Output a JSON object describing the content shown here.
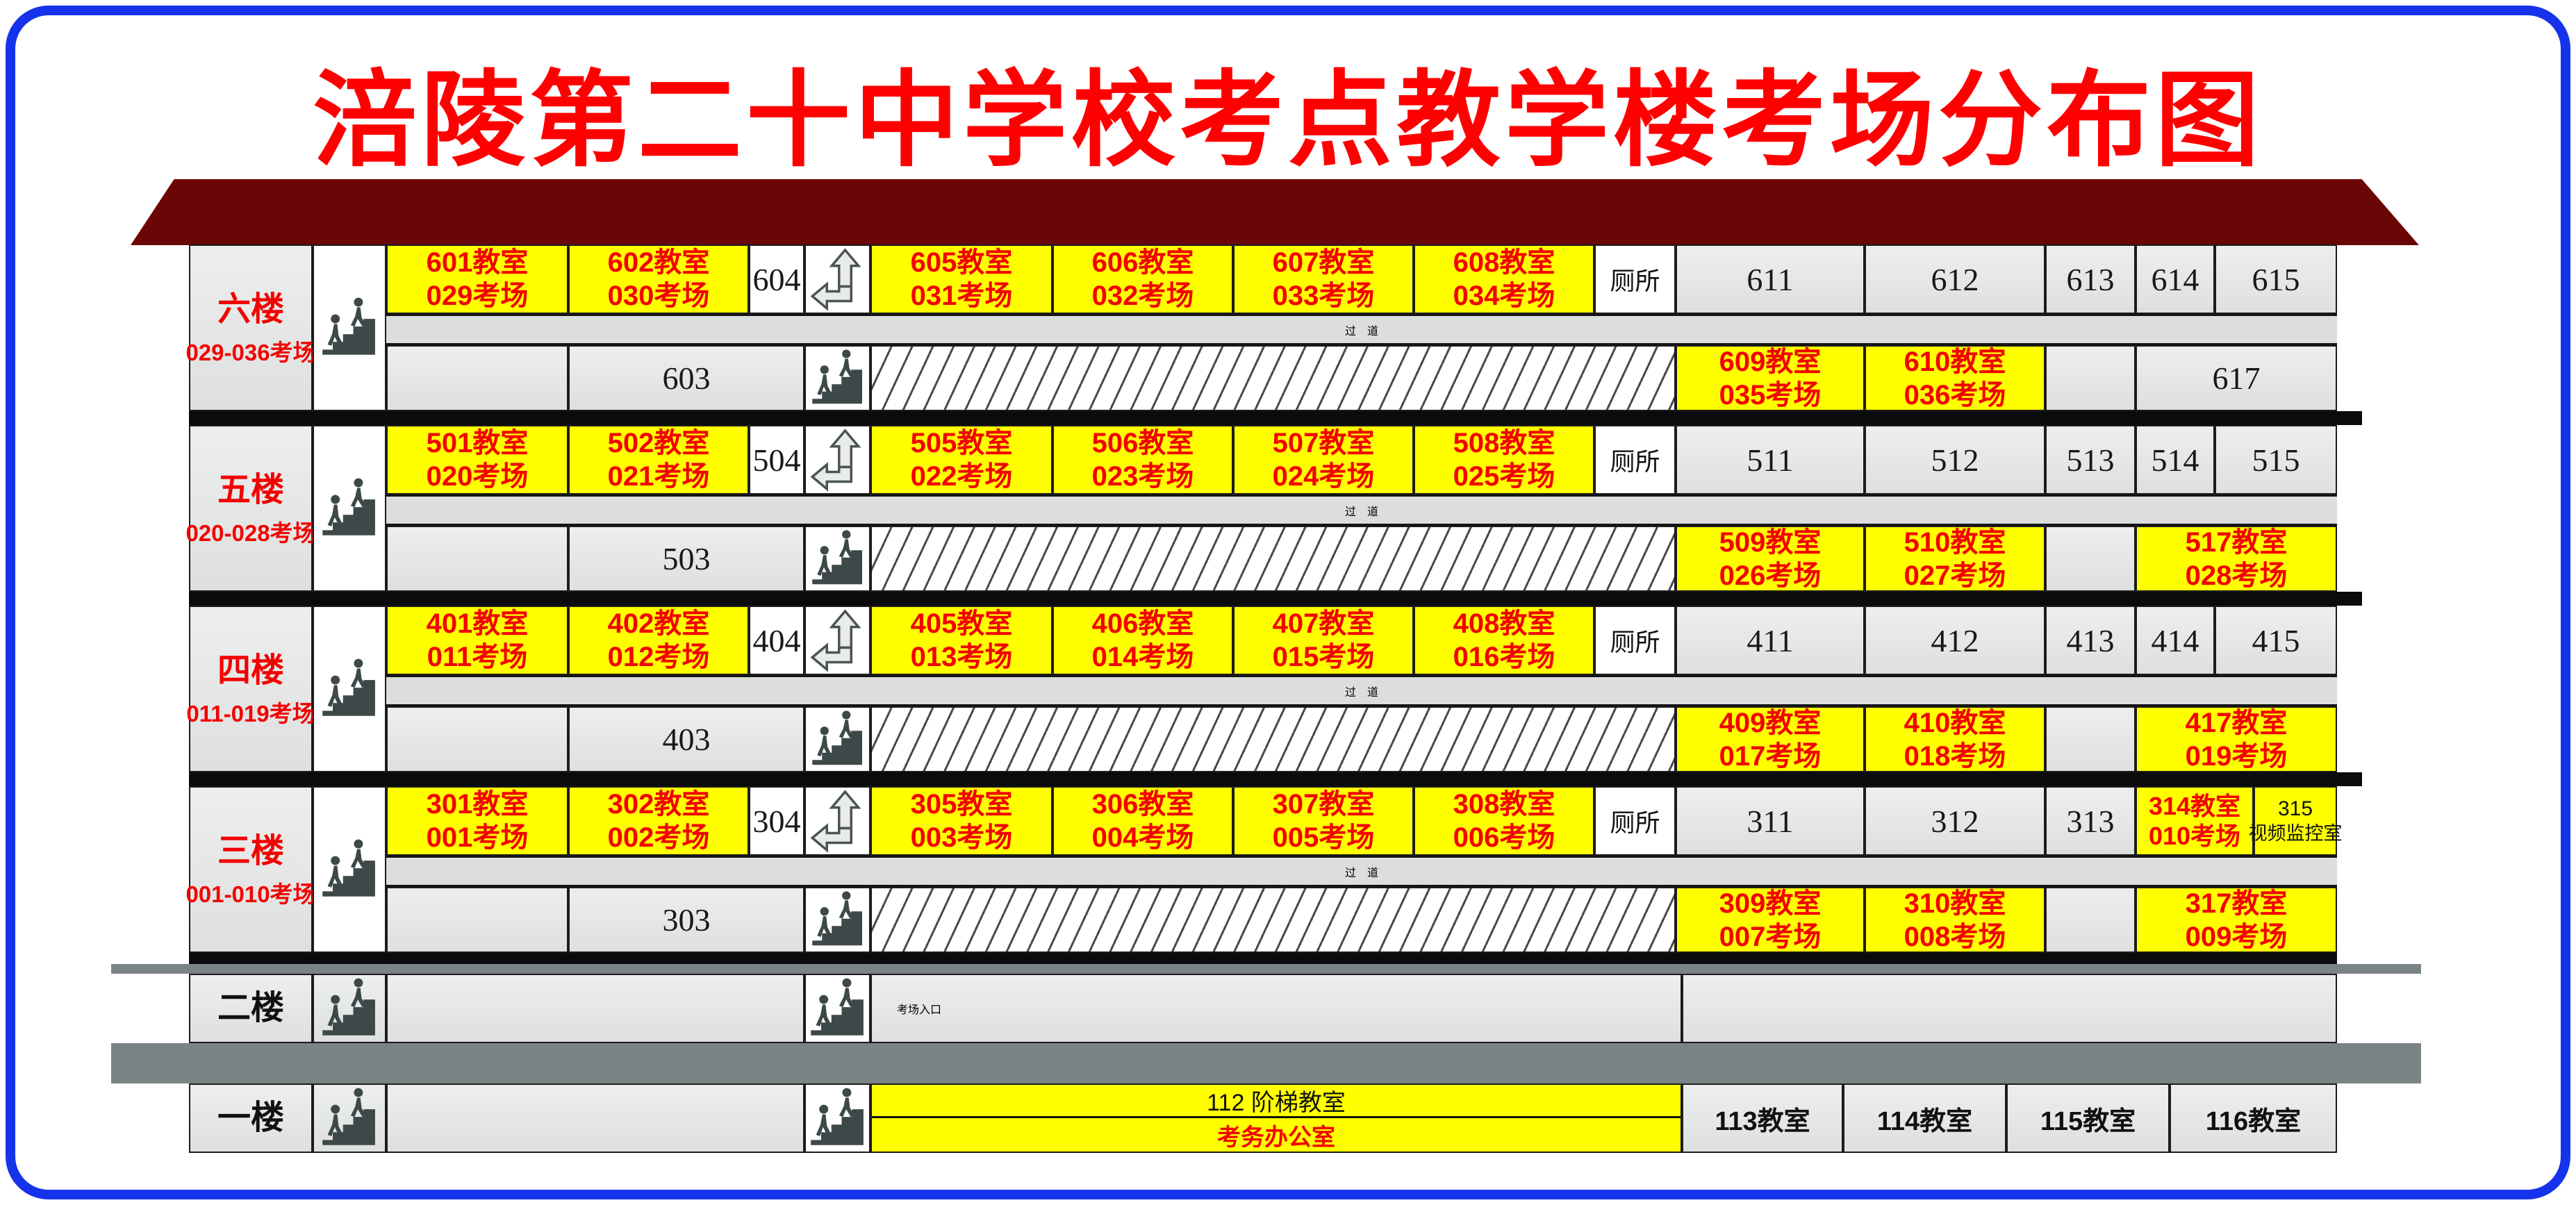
{
  "title": "涪陵第二十中学校考点教学楼考场分布图",
  "labels": {
    "corridor": "过　道",
    "toilet": "厕所",
    "entrance": "考场入口"
  },
  "colors": {
    "title_red": "#fe0000",
    "room_red": "#f30000",
    "yellow": "#ffff00",
    "roof": "#6a0706",
    "slab_gray": "#7a8486",
    "border_blue": "#1633ec"
  },
  "floors": [
    {
      "name": "六楼",
      "range": "029-036考场",
      "top": [
        {
          "k": "room",
          "t": "601教室",
          "e": "029考场"
        },
        {
          "k": "room",
          "t": "602教室",
          "e": "030考场"
        },
        {
          "k": "wnum",
          "t": "604"
        },
        {
          "k": "arrow"
        },
        {
          "k": "room",
          "t": "605教室",
          "e": "031考场"
        },
        {
          "k": "room",
          "t": "606教室",
          "e": "032考场"
        },
        {
          "k": "room",
          "t": "607教室",
          "e": "033考场"
        },
        {
          "k": "room",
          "t": "608教室",
          "e": "034考场"
        },
        {
          "k": "toilet"
        },
        {
          "k": "gnum",
          "t": "611"
        },
        {
          "k": "gnum",
          "t": "612"
        },
        {
          "k": "gnum",
          "t": "613"
        },
        {
          "k": "gnum",
          "t": "614"
        },
        {
          "k": "gnum",
          "t": "615"
        }
      ],
      "bottom": [
        {
          "k": "gempty"
        },
        {
          "k": "gnum",
          "t": "603"
        },
        {
          "k": "stairs"
        },
        {
          "k": "hatch"
        },
        {
          "k": "room",
          "t": "609教室",
          "e": "035考场"
        },
        {
          "k": "room",
          "t": "610教室",
          "e": "036考场"
        },
        {
          "k": "gempty"
        },
        {
          "k": "gnum",
          "t": "617"
        }
      ]
    },
    {
      "name": "五楼",
      "range": "020-028考场",
      "top": [
        {
          "k": "room",
          "t": "501教室",
          "e": "020考场"
        },
        {
          "k": "room",
          "t": "502教室",
          "e": "021考场"
        },
        {
          "k": "wnum",
          "t": "504"
        },
        {
          "k": "arrow"
        },
        {
          "k": "room",
          "t": "505教室",
          "e": "022考场"
        },
        {
          "k": "room",
          "t": "506教室",
          "e": "023考场"
        },
        {
          "k": "room",
          "t": "507教室",
          "e": "024考场"
        },
        {
          "k": "room",
          "t": "508教室",
          "e": "025考场"
        },
        {
          "k": "toilet"
        },
        {
          "k": "gnum",
          "t": "511"
        },
        {
          "k": "gnum",
          "t": "512"
        },
        {
          "k": "gnum",
          "t": "513"
        },
        {
          "k": "gnum",
          "t": "514"
        },
        {
          "k": "gnum",
          "t": "515"
        }
      ],
      "bottom": [
        {
          "k": "gempty"
        },
        {
          "k": "gnum",
          "t": "503"
        },
        {
          "k": "stairs"
        },
        {
          "k": "hatch"
        },
        {
          "k": "room",
          "t": "509教室",
          "e": "026考场"
        },
        {
          "k": "room",
          "t": "510教室",
          "e": "027考场"
        },
        {
          "k": "gempty"
        },
        {
          "k": "room",
          "t": "517教室",
          "e": "028考场"
        }
      ]
    },
    {
      "name": "四楼",
      "range": "011-019考场",
      "top": [
        {
          "k": "room",
          "t": "401教室",
          "e": "011考场"
        },
        {
          "k": "room",
          "t": "402教室",
          "e": "012考场"
        },
        {
          "k": "wnum",
          "t": "404"
        },
        {
          "k": "arrow"
        },
        {
          "k": "room",
          "t": "405教室",
          "e": "013考场"
        },
        {
          "k": "room",
          "t": "406教室",
          "e": "014考场"
        },
        {
          "k": "room",
          "t": "407教室",
          "e": "015考场"
        },
        {
          "k": "room",
          "t": "408教室",
          "e": "016考场"
        },
        {
          "k": "toilet"
        },
        {
          "k": "gnum",
          "t": "411"
        },
        {
          "k": "gnum",
          "t": "412"
        },
        {
          "k": "gnum",
          "t": "413"
        },
        {
          "k": "gnum",
          "t": "414"
        },
        {
          "k": "gnum",
          "t": "415"
        }
      ],
      "bottom": [
        {
          "k": "gempty"
        },
        {
          "k": "gnum",
          "t": "403"
        },
        {
          "k": "stairs"
        },
        {
          "k": "hatch"
        },
        {
          "k": "room",
          "t": "409教室",
          "e": "017考场"
        },
        {
          "k": "room",
          "t": "410教室",
          "e": "018考场"
        },
        {
          "k": "gempty"
        },
        {
          "k": "room",
          "t": "417教室",
          "e": "019考场"
        }
      ]
    },
    {
      "name": "三楼",
      "range": "001-010考场",
      "top": [
        {
          "k": "room",
          "t": "301教室",
          "e": "001考场"
        },
        {
          "k": "room",
          "t": "302教室",
          "e": "002考场"
        },
        {
          "k": "wnum",
          "t": "304"
        },
        {
          "k": "arrow"
        },
        {
          "k": "room",
          "t": "305教室",
          "e": "003考场"
        },
        {
          "k": "room",
          "t": "306教室",
          "e": "004考场"
        },
        {
          "k": "room",
          "t": "307教室",
          "e": "005考场"
        },
        {
          "k": "room",
          "t": "308教室",
          "e": "006考场"
        },
        {
          "k": "toilet"
        },
        {
          "k": "gnum",
          "t": "311"
        },
        {
          "k": "gnum",
          "t": "312"
        },
        {
          "k": "gnum",
          "t": "313"
        },
        {
          "k": "room_sm",
          "t": "314教室",
          "e": "010考场"
        },
        {
          "k": "ymon",
          "t": "315",
          "e": "视频监控室"
        }
      ],
      "bottom": [
        {
          "k": "gempty"
        },
        {
          "k": "gnum",
          "t": "303"
        },
        {
          "k": "stairs"
        },
        {
          "k": "hatch"
        },
        {
          "k": "room",
          "t": "309教室",
          "e": "007考场"
        },
        {
          "k": "room",
          "t": "310教室",
          "e": "008考场"
        },
        {
          "k": "gempty"
        },
        {
          "k": "room",
          "t": "317教室",
          "e": "009考场"
        }
      ]
    }
  ],
  "floor2": {
    "name": "二楼",
    "entrance": "考场入口"
  },
  "floor1": {
    "name": "一楼",
    "hall_num": "112 阶梯教室",
    "hall_office": "考务办公室",
    "rooms": [
      "113教室",
      "114教室",
      "115教室",
      "116教室"
    ]
  }
}
